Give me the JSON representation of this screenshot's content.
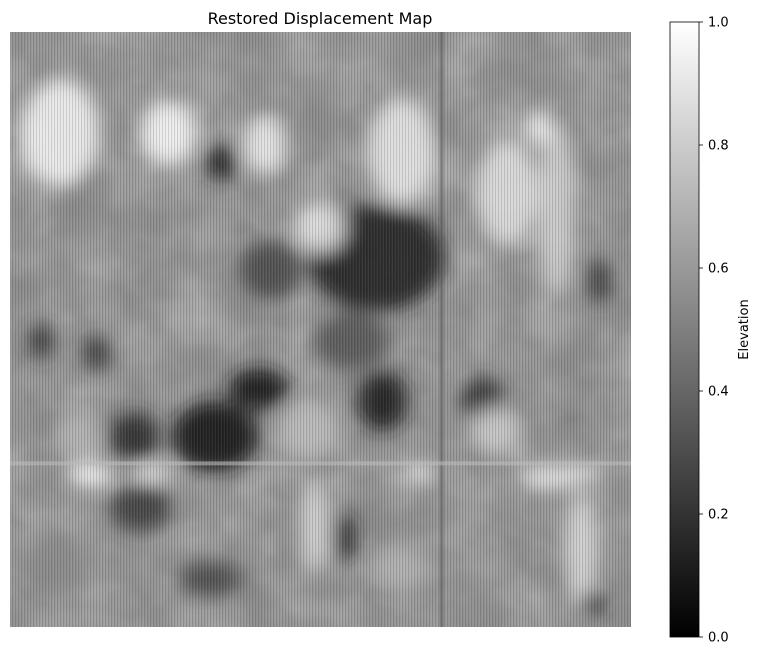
{
  "chart_data": {
    "type": "heatmap",
    "title": "Restored Displacement Map",
    "colormap": "gray",
    "colorbar": {
      "label": "Elevation",
      "range": [
        0.0,
        1.0
      ],
      "ticks": [
        0.0,
        0.2,
        0.4,
        0.6,
        0.8,
        1.0
      ],
      "tick_labels": [
        "0.0",
        "0.2",
        "0.4",
        "0.6",
        "0.8",
        "1.0"
      ]
    },
    "axes_visible": false,
    "grid": false,
    "tiles": {
      "seam_x_fraction": 0.695,
      "seam_y_fraction": 0.725
    },
    "features": [
      {
        "x": 0.08,
        "y": 0.17,
        "rx": 0.065,
        "ry": 0.09,
        "value": 0.95
      },
      {
        "x": 0.255,
        "y": 0.17,
        "rx": 0.045,
        "ry": 0.055,
        "value": 0.97
      },
      {
        "x": 0.41,
        "y": 0.19,
        "rx": 0.035,
        "ry": 0.05,
        "value": 0.92
      },
      {
        "x": 0.63,
        "y": 0.2,
        "rx": 0.055,
        "ry": 0.09,
        "value": 0.9
      },
      {
        "x": 0.34,
        "y": 0.22,
        "rx": 0.025,
        "ry": 0.03,
        "value": 0.15
      },
      {
        "x": 0.59,
        "y": 0.38,
        "rx": 0.11,
        "ry": 0.09,
        "value": 0.15
      },
      {
        "x": 0.5,
        "y": 0.33,
        "rx": 0.04,
        "ry": 0.04,
        "value": 0.9
      },
      {
        "x": 0.4,
        "y": 0.6,
        "rx": 0.05,
        "ry": 0.035,
        "value": 0.08
      },
      {
        "x": 0.33,
        "y": 0.68,
        "rx": 0.07,
        "ry": 0.06,
        "value": 0.1
      },
      {
        "x": 0.6,
        "y": 0.62,
        "rx": 0.04,
        "ry": 0.05,
        "value": 0.12
      },
      {
        "x": 0.2,
        "y": 0.68,
        "rx": 0.04,
        "ry": 0.04,
        "value": 0.18
      },
      {
        "x": 0.05,
        "y": 0.52,
        "rx": 0.02,
        "ry": 0.03,
        "value": 0.2
      },
      {
        "x": 0.14,
        "y": 0.54,
        "rx": 0.02,
        "ry": 0.03,
        "value": 0.22
      },
      {
        "x": 0.55,
        "y": 0.52,
        "rx": 0.06,
        "ry": 0.05,
        "value": 0.35
      },
      {
        "x": 0.42,
        "y": 0.4,
        "rx": 0.05,
        "ry": 0.05,
        "value": 0.3
      },
      {
        "x": 0.8,
        "y": 0.27,
        "rx": 0.05,
        "ry": 0.09,
        "value": 0.88
      },
      {
        "x": 0.88,
        "y": 0.3,
        "rx": 0.03,
        "ry": 0.15,
        "value": 0.82
      },
      {
        "x": 0.85,
        "y": 0.16,
        "rx": 0.02,
        "ry": 0.03,
        "value": 0.95
      },
      {
        "x": 0.76,
        "y": 0.62,
        "rx": 0.035,
        "ry": 0.04,
        "value": 0.2
      },
      {
        "x": 0.95,
        "y": 0.42,
        "rx": 0.02,
        "ry": 0.04,
        "value": 0.25
      },
      {
        "x": 0.78,
        "y": 0.67,
        "rx": 0.04,
        "ry": 0.04,
        "value": 0.8
      },
      {
        "x": 0.48,
        "y": 0.67,
        "rx": 0.05,
        "ry": 0.05,
        "value": 0.75
      },
      {
        "x": 0.11,
        "y": 0.68,
        "rx": 0.03,
        "ry": 0.04,
        "value": 0.72
      },
      {
        "x": 0.13,
        "y": 0.745,
        "rx": 0.035,
        "ry": 0.018,
        "value": 1.0
      },
      {
        "x": 0.23,
        "y": 0.742,
        "rx": 0.035,
        "ry": 0.012,
        "value": 0.98
      },
      {
        "x": 0.66,
        "y": 0.742,
        "rx": 0.025,
        "ry": 0.012,
        "value": 0.97
      },
      {
        "x": 0.87,
        "y": 0.75,
        "rx": 0.05,
        "ry": 0.015,
        "value": 0.95
      },
      {
        "x": 0.92,
        "y": 0.74,
        "rx": 0.035,
        "ry": 0.01,
        "value": 0.97
      },
      {
        "x": 0.49,
        "y": 0.83,
        "rx": 0.022,
        "ry": 0.08,
        "value": 0.85
      },
      {
        "x": 0.54,
        "y": 0.85,
        "rx": 0.015,
        "ry": 0.04,
        "value": 0.12
      },
      {
        "x": 0.21,
        "y": 0.8,
        "rx": 0.05,
        "ry": 0.04,
        "value": 0.25
      },
      {
        "x": 0.92,
        "y": 0.87,
        "rx": 0.025,
        "ry": 0.1,
        "value": 0.85
      },
      {
        "x": 0.94,
        "y": 0.96,
        "rx": 0.02,
        "ry": 0.02,
        "value": 0.15
      },
      {
        "x": 0.63,
        "y": 0.9,
        "rx": 0.04,
        "ry": 0.04,
        "value": 0.7
      },
      {
        "x": 0.32,
        "y": 0.92,
        "rx": 0.05,
        "ry": 0.03,
        "value": 0.3
      },
      {
        "x": 0.07,
        "y": 0.88,
        "rx": 0.04,
        "ry": 0.05,
        "value": 0.55
      }
    ]
  }
}
